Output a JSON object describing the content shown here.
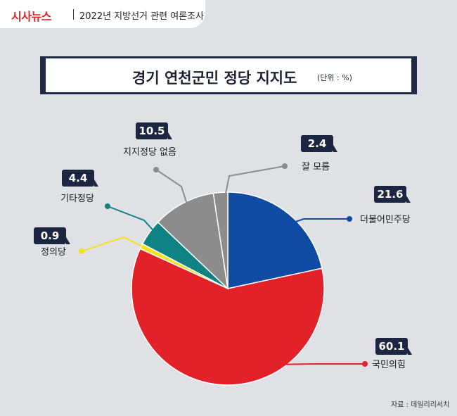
{
  "header": {
    "logo": "시사뉴스",
    "subtitle": "2022년 지방선거 관련 여론조사"
  },
  "chart_data": {
    "type": "pie",
    "title": "경기 연천군민 정당 지지도",
    "unit": "(단위 : %)",
    "slices": [
      {
        "label": "더불어민주당",
        "value": 21.6,
        "display": "21.6",
        "color": "#0f4aa3"
      },
      {
        "label": "국민의힘",
        "value": 60.1,
        "display": "60.1",
        "color": "#e22128"
      },
      {
        "label": "정의당",
        "value": 0.9,
        "display": "0.9",
        "color": "#f3e31c"
      },
      {
        "label": "기타정당",
        "value": 4.4,
        "display": "4.4",
        "color": "#0f8384"
      },
      {
        "label": "지지정당 없음",
        "value": 10.5,
        "display": "10.5",
        "color": "#8c8c8c"
      },
      {
        "label": "잘 모름",
        "value": 2.4,
        "display": "2.4",
        "color": "#8c8c8c"
      }
    ]
  },
  "footer": {
    "source": "자료 : 데일리리서치"
  }
}
